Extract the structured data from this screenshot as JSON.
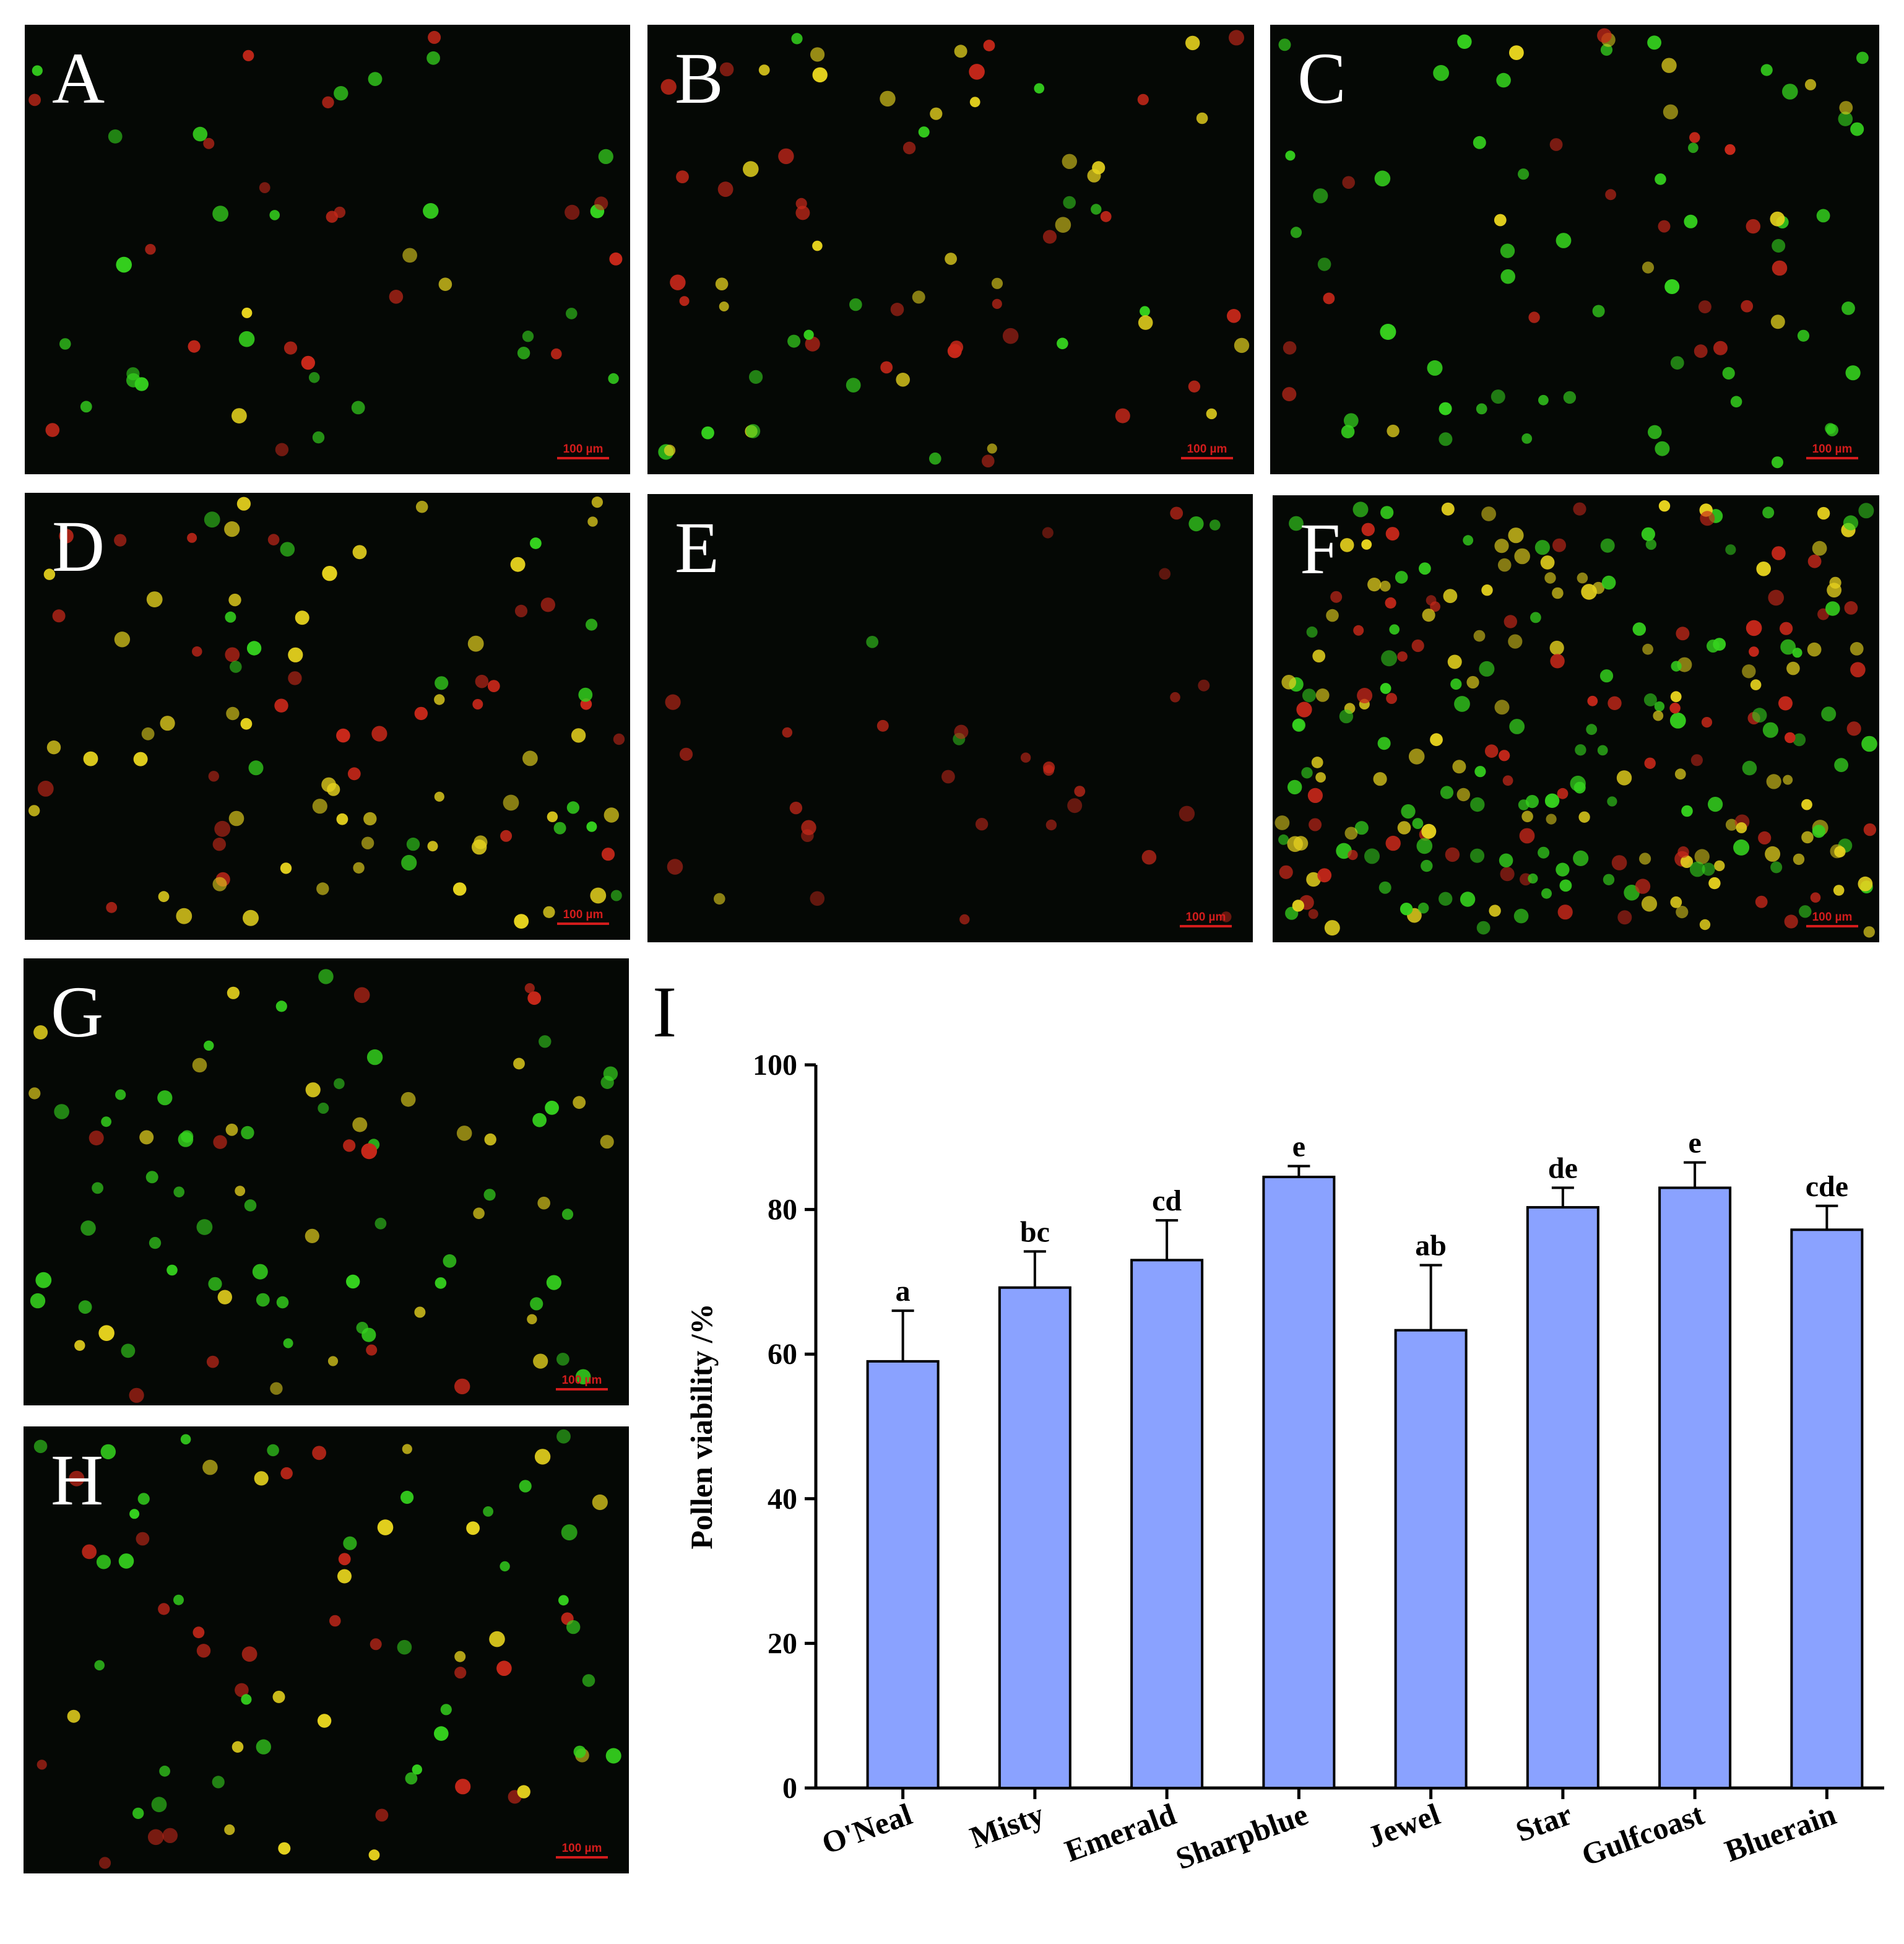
{
  "panels": [
    {
      "letter": "A",
      "scale": "100 µm",
      "dist": {
        "green": 0.5,
        "yellow": 0.05,
        "red": 0.45
      },
      "density": 48,
      "dim": false
    },
    {
      "letter": "B",
      "scale": "100 µm",
      "dist": {
        "green": 0.15,
        "yellow": 0.45,
        "red": 0.4
      },
      "density": 70,
      "dim": false
    },
    {
      "letter": "C",
      "scale": "100 µm",
      "dist": {
        "green": 0.6,
        "yellow": 0.1,
        "red": 0.3
      },
      "density": 80,
      "dim": false
    },
    {
      "letter": "D",
      "scale": "100 µm",
      "dist": {
        "green": 0.2,
        "yellow": 0.55,
        "red": 0.25
      },
      "density": 95,
      "dim": false
    },
    {
      "letter": "E",
      "scale": "100 µm",
      "dist": {
        "green": 0.06,
        "yellow": 0.04,
        "red": 0.9
      },
      "density": 32,
      "dim": true
    },
    {
      "letter": "F",
      "scale": "100 µm",
      "dist": {
        "green": 0.4,
        "yellow": 0.35,
        "red": 0.25
      },
      "density": 260,
      "dim": false
    },
    {
      "letter": "G",
      "scale": "100 µm",
      "dist": {
        "green": 0.45,
        "yellow": 0.35,
        "red": 0.2
      },
      "density": 85,
      "dim": false
    },
    {
      "letter": "H",
      "scale": "100 µm",
      "dist": {
        "green": 0.45,
        "yellow": 0.3,
        "red": 0.25
      },
      "density": 75,
      "dim": false
    }
  ],
  "cell_colors": {
    "green": "#35d21e",
    "yellow": "#e6d21e",
    "red": "#c8281a"
  },
  "chart_panel_letter": "I",
  "chart_data": {
    "type": "bar",
    "categories": [
      "O'Neal",
      "Misty",
      "Emerald",
      "Sharpblue",
      "Jewel",
      "Star",
      "Gulfcoast",
      "Bluerain"
    ],
    "values": [
      59,
      69.2,
      73,
      84.5,
      63.3,
      80.3,
      83,
      77.2
    ],
    "errors": [
      7,
      5,
      5.5,
      1.5,
      9,
      2.7,
      3.5,
      3.3
    ],
    "significance": [
      "a",
      "bc",
      "cd",
      "e",
      "ab",
      "de",
      "e",
      "cde"
    ],
    "ylabel": "Pollen viability /%",
    "xlabel": "",
    "ylim": [
      0,
      100
    ],
    "yticks": [
      0,
      20,
      40,
      60,
      80,
      100
    ],
    "bar_color": "#8aa2ff",
    "grid": false
  }
}
